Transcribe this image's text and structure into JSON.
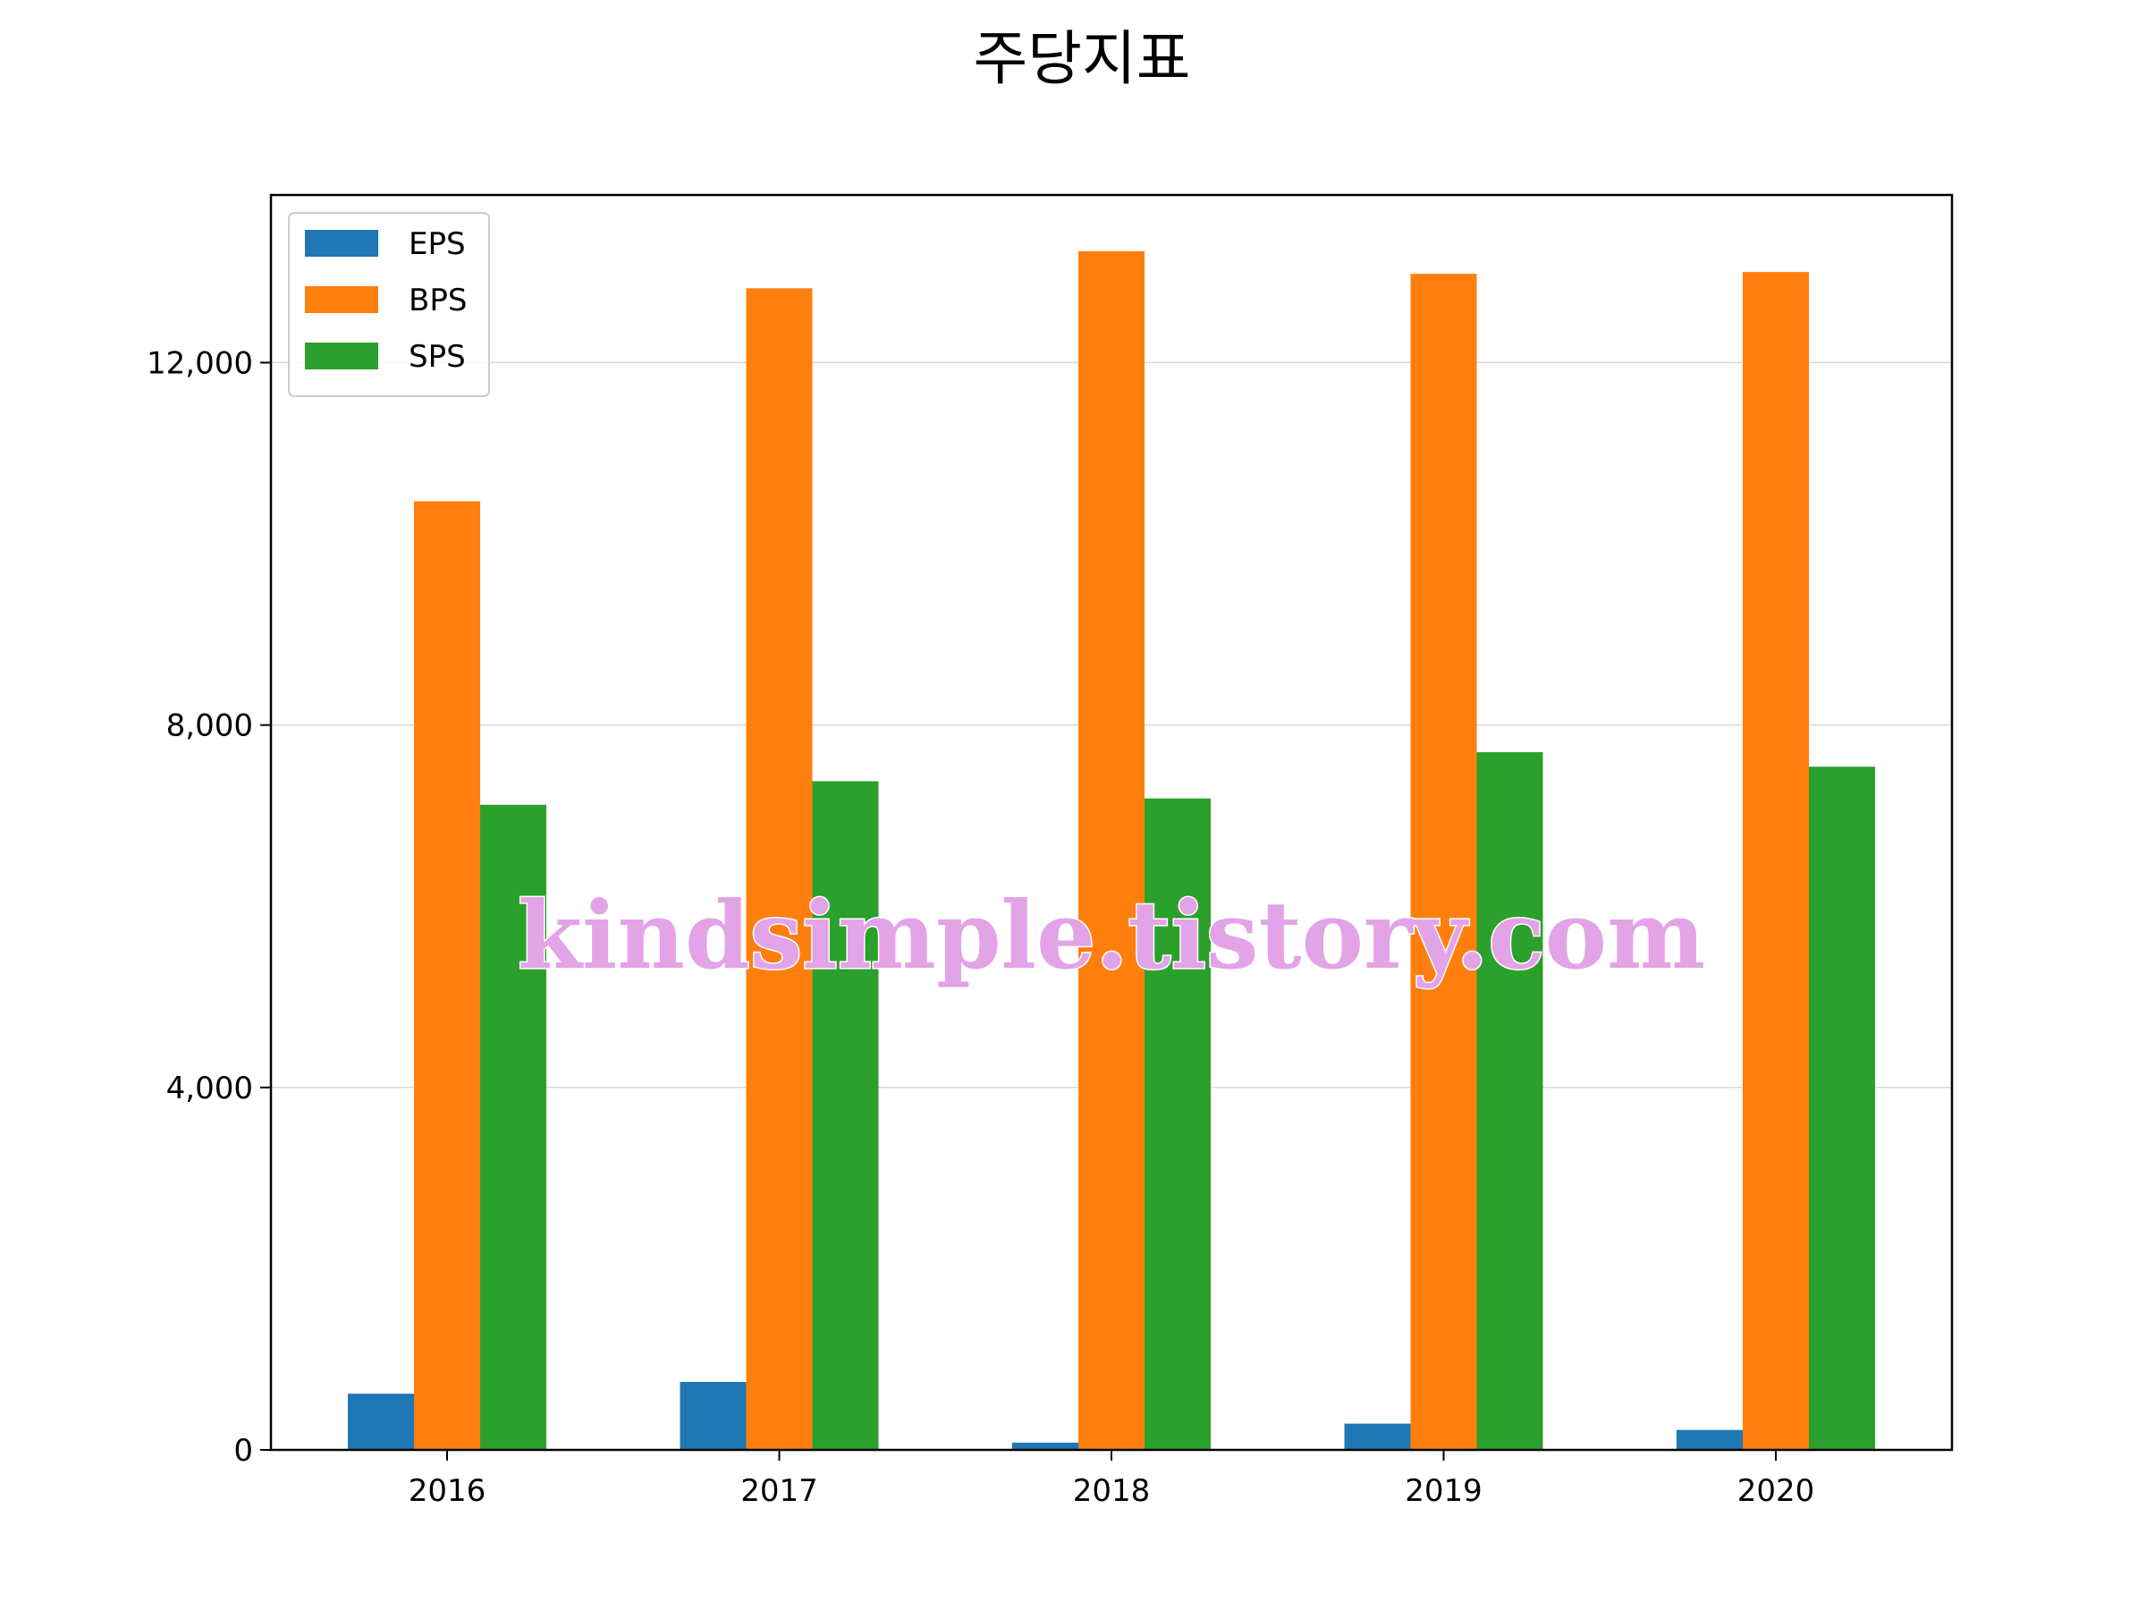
{
  "chart_data": {
    "type": "bar",
    "title": "주당지표",
    "categories": [
      "2016",
      "2017",
      "2018",
      "2019",
      "2020"
    ],
    "series": [
      {
        "name": "EPS",
        "color": "#1f77b4",
        "values": [
          620,
          750,
          80,
          290,
          220
        ]
      },
      {
        "name": "BPS",
        "color": "#ff7f0e",
        "values": [
          10470,
          12820,
          13230,
          12980,
          13000
        ]
      },
      {
        "name": "SPS",
        "color": "#2ca02c",
        "values": [
          7120,
          7380,
          7190,
          7700,
          7540
        ]
      }
    ],
    "ylim": [
      0,
      13850
    ],
    "yticks": [
      0,
      4000,
      8000,
      12000
    ],
    "ytick_labels": [
      "0",
      "4,000",
      "8,000",
      "12,000"
    ],
    "grid": "horizontal",
    "legend": "top-left"
  },
  "watermark": "kindsimple.tistory.com"
}
